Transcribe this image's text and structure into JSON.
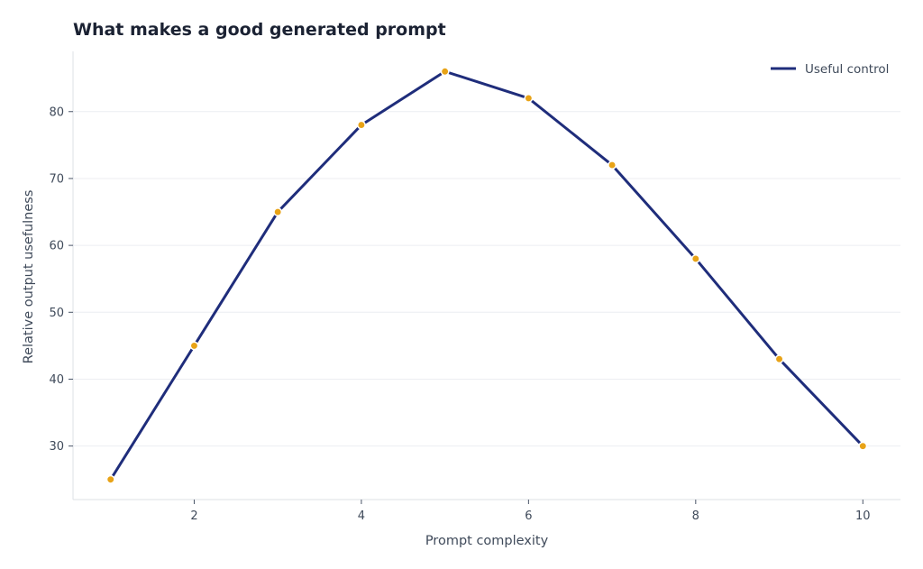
{
  "chart_data": {
    "type": "line",
    "title": "What makes a good generated prompt",
    "xlabel": "Prompt complexity",
    "ylabel": "Relative output usefulness",
    "xlim": [
      0.55,
      10.45
    ],
    "ylim": [
      22,
      89
    ],
    "xticks": [
      2,
      4,
      6,
      8,
      10
    ],
    "yticks": [
      30,
      40,
      50,
      60,
      70,
      80
    ],
    "grid": "horizontal",
    "legend_position": "top-right",
    "series": [
      {
        "name": "Useful control",
        "color": "#1f2d7b",
        "marker_color": "#e8a317",
        "x": [
          1,
          2,
          3,
          4,
          5,
          6,
          7,
          8,
          9,
          10
        ],
        "y": [
          25,
          45,
          65,
          78,
          86,
          82,
          72,
          58,
          43,
          30
        ]
      }
    ]
  }
}
